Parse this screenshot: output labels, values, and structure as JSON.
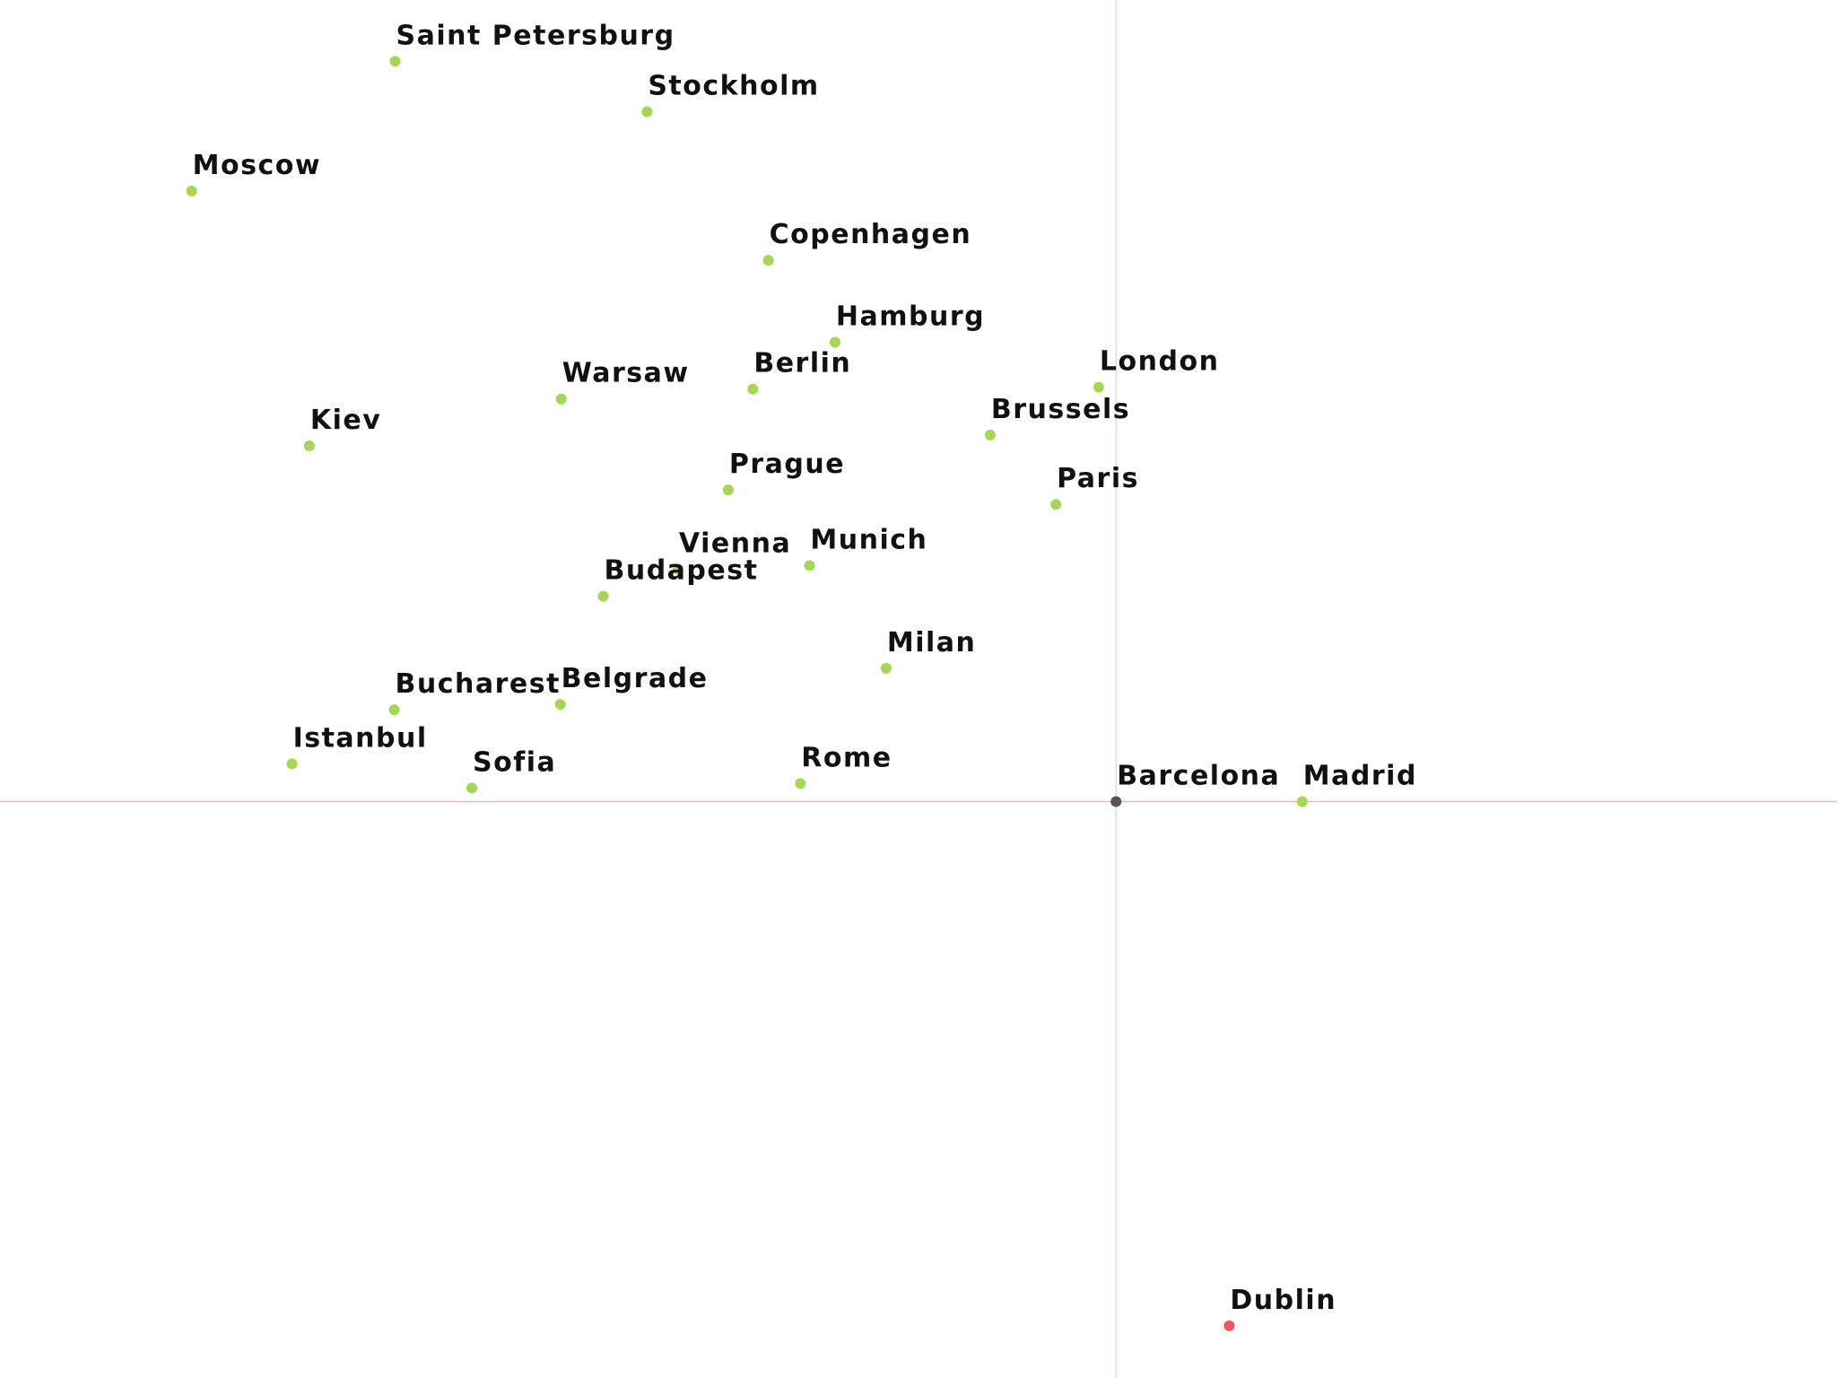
{
  "chart_data": {
    "type": "scatter",
    "title": "",
    "xlabel": "",
    "ylabel": "",
    "grid": false,
    "axis_lines": {
      "horizontal_color": "#f6b3b8",
      "vertical_color": "#c9efc6"
    },
    "colors": {
      "default_point": "#a2d94f",
      "origin_point": "#555555",
      "highlight_point": "#f25757",
      "label_text": "#111111",
      "background": "#ffffff"
    },
    "xlim": [
      -1223,
      790
    ],
    "ylim": [
      -640,
      890
    ],
    "points": [
      {
        "name": "Saint Petersburg",
        "x": -790,
        "y": 822,
        "role": "default"
      },
      {
        "name": "Stockholm",
        "x": -514,
        "y": 766,
        "role": "default"
      },
      {
        "name": "Moscow",
        "x": -1013,
        "y": 678,
        "role": "default"
      },
      {
        "name": "Copenhagen",
        "x": -381,
        "y": 601,
        "role": "default"
      },
      {
        "name": "Hamburg",
        "x": -308,
        "y": 510,
        "role": "default"
      },
      {
        "name": "London",
        "x": -19,
        "y": 460,
        "role": "default"
      },
      {
        "name": "Berlin",
        "x": -398,
        "y": 458,
        "role": "default"
      },
      {
        "name": "Warsaw",
        "x": -608,
        "y": 447,
        "role": "default"
      },
      {
        "name": "Brussels",
        "x": -138,
        "y": 407,
        "role": "default"
      },
      {
        "name": "Kiev",
        "x": -884,
        "y": 395,
        "role": "default"
      },
      {
        "name": "Prague",
        "x": -425,
        "y": 346,
        "role": "default"
      },
      {
        "name": "Paris",
        "x": -66,
        "y": 330,
        "role": "default"
      },
      {
        "name": "Vienna",
        "x": -480,
        "y": 258,
        "role": "default"
      },
      {
        "name": "Munich",
        "x": -336,
        "y": 262,
        "role": "default"
      },
      {
        "name": "Budapest",
        "x": -562,
        "y": 228,
        "role": "default"
      },
      {
        "name": "Milan",
        "x": -252,
        "y": 148,
        "role": "default"
      },
      {
        "name": "Bucharest",
        "x": -791,
        "y": 102,
        "role": "default"
      },
      {
        "name": "Belgrade",
        "x": -609,
        "y": 108,
        "role": "default"
      },
      {
        "name": "Istanbul",
        "x": -903,
        "y": 42,
        "role": "default"
      },
      {
        "name": "Sofia",
        "x": -706,
        "y": 15,
        "role": "default"
      },
      {
        "name": "Rome",
        "x": -346,
        "y": 20,
        "role": "default"
      },
      {
        "name": "Barcelona",
        "x": 0,
        "y": 0,
        "role": "origin"
      },
      {
        "name": "Madrid",
        "x": 204,
        "y": 0,
        "role": "default"
      },
      {
        "name": "Dublin",
        "x": 124,
        "y": -582,
        "role": "highlight"
      }
    ]
  }
}
